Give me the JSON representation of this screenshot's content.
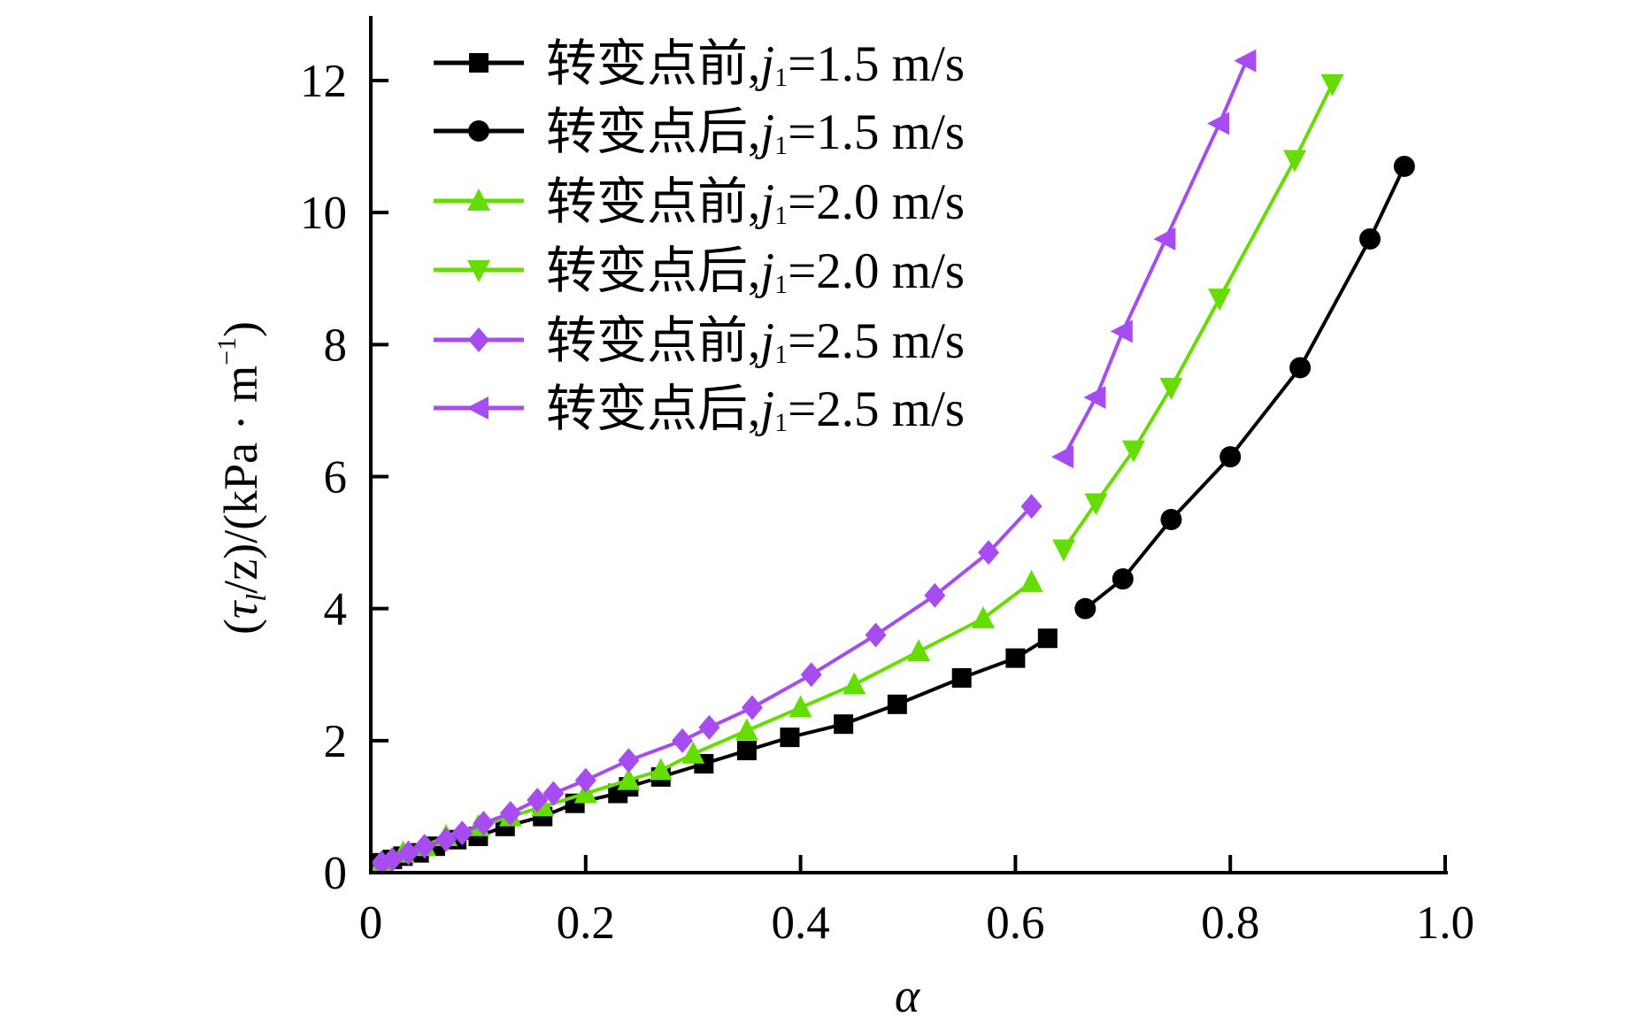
{
  "chart_data": {
    "type": "line",
    "title": "",
    "xlabel": "α",
    "ylabel": {
      "open": "(",
      "tau": "τ",
      "sub": "l",
      "rest": "/z)/(kPa · m",
      "sup": "−1",
      "close": ")"
    },
    "xlim": [
      0,
      1.0
    ],
    "ylim": [
      0,
      12.5
    ],
    "xticks": [
      "0",
      "0.2",
      "0.4",
      "0.6",
      "0.8",
      "1.0"
    ],
    "xtick_values": [
      0,
      0.2,
      0.4,
      0.6,
      0.8,
      1.0
    ],
    "yticks": [
      "0",
      "2",
      "4",
      "6",
      "8",
      "10",
      "12"
    ],
    "ytick_values": [
      0,
      2,
      4,
      6,
      8,
      10,
      12
    ],
    "grid": false,
    "legend_placement": "top-left",
    "series": [
      {
        "cn": "转变点前",
        "j": "j",
        "sub": "1",
        "value": "=1.5 m/s",
        "color": "#000000",
        "marker": "square",
        "x": [
          0.01,
          0.02,
          0.03,
          0.045,
          0.06,
          0.08,
          0.1,
          0.125,
          0.16,
          0.19,
          0.23,
          0.24,
          0.27,
          0.31,
          0.35,
          0.39,
          0.44,
          0.49,
          0.55,
          0.6,
          0.63
        ],
        "y": [
          0.15,
          0.2,
          0.25,
          0.3,
          0.4,
          0.5,
          0.55,
          0.7,
          0.85,
          1.05,
          1.2,
          1.3,
          1.45,
          1.65,
          1.85,
          2.05,
          2.25,
          2.55,
          2.95,
          3.25,
          3.55
        ]
      },
      {
        "cn": "转变点后",
        "j": "j",
        "sub": "1",
        "value": "=1.5 m/s",
        "color": "#000000",
        "marker": "circle",
        "x": [
          0.665,
          0.7,
          0.745,
          0.8,
          0.865,
          0.93,
          0.962
        ],
        "y": [
          4.0,
          4.45,
          5.35,
          6.3,
          7.65,
          9.6,
          10.7
        ]
      },
      {
        "cn": "转变点前",
        "j": "j",
        "sub": "1",
        "value": "=2.0 m/s",
        "color": "#66dd00",
        "marker": "triangle-up",
        "x": [
          0.01,
          0.03,
          0.05,
          0.07,
          0.1,
          0.13,
          0.16,
          0.2,
          0.24,
          0.27,
          0.3,
          0.35,
          0.4,
          0.45,
          0.51,
          0.57,
          0.615
        ],
        "y": [
          0.15,
          0.3,
          0.4,
          0.55,
          0.7,
          0.85,
          1.0,
          1.2,
          1.4,
          1.55,
          1.8,
          2.15,
          2.5,
          2.85,
          3.35,
          3.85,
          4.4
        ]
      },
      {
        "cn": "转变点后",
        "j": "j",
        "sub": "1",
        "value": "=2.0 m/s",
        "color": "#66dd00",
        "marker": "triangle-down",
        "x": [
          0.645,
          0.675,
          0.71,
          0.745,
          0.79,
          0.86,
          0.895
        ],
        "y": [
          4.9,
          5.6,
          6.4,
          7.35,
          8.7,
          10.8,
          11.95
        ]
      },
      {
        "cn": "转变点前",
        "j": "j",
        "sub": "1",
        "value": "=2.5 m/s",
        "color": "#a64cf0",
        "marker": "diamond",
        "x": [
          0.01,
          0.02,
          0.035,
          0.05,
          0.07,
          0.085,
          0.105,
          0.13,
          0.155,
          0.17,
          0.2,
          0.24,
          0.29,
          0.315,
          0.355,
          0.41,
          0.47,
          0.525,
          0.575,
          0.615
        ],
        "y": [
          0.15,
          0.2,
          0.3,
          0.4,
          0.5,
          0.6,
          0.75,
          0.9,
          1.1,
          1.2,
          1.4,
          1.7,
          2.0,
          2.2,
          2.5,
          3.0,
          3.6,
          4.2,
          4.85,
          5.55
        ]
      },
      {
        "cn": "转变点后",
        "j": "j",
        "sub": "1",
        "value": "=2.5 m/s",
        "color": "#a64cf0",
        "marker": "triangle-left",
        "x": [
          0.645,
          0.675,
          0.7,
          0.74,
          0.79,
          0.815
        ],
        "y": [
          6.3,
          7.2,
          8.2,
          9.6,
          11.35,
          12.3
        ]
      }
    ]
  }
}
